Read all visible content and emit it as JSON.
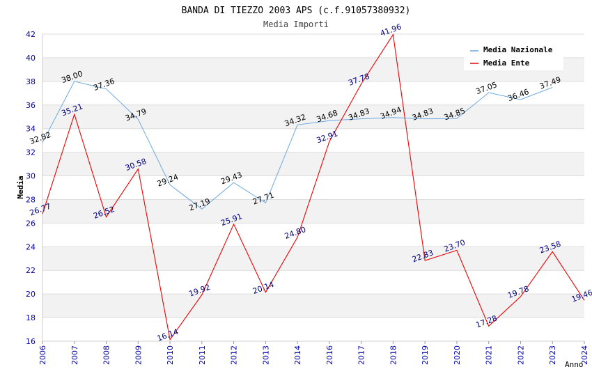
{
  "chart_data": {
    "type": "line",
    "title": "BANDA DI TIEZZO 2003 APS (c.f.91057380932)",
    "subtitle": "Media Importi",
    "xlabel": "Anno",
    "ylabel": "Media",
    "categories": [
      "2006",
      "2007",
      "2008",
      "2009",
      "2010",
      "2011",
      "2012",
      "2013",
      "2014",
      "2016",
      "2017",
      "2018",
      "2019",
      "2020",
      "2021",
      "2022",
      "2023",
      "2024"
    ],
    "ylim": [
      16,
      42
    ],
    "yticks": [
      16,
      18,
      20,
      22,
      24,
      26,
      28,
      30,
      32,
      34,
      36,
      38,
      40,
      42
    ],
    "legend_position": "top-right",
    "series": [
      {
        "name": "Media Nazionale",
        "color": "#6aa8e0",
        "label_color": "#000000",
        "values": [
          32.82,
          38.0,
          37.36,
          34.79,
          29.24,
          27.19,
          29.43,
          27.71,
          34.32,
          34.68,
          34.83,
          34.94,
          34.83,
          34.85,
          37.05,
          36.46,
          37.49,
          null
        ],
        "labels": [
          "32.82",
          "38.00",
          "37.36",
          "34.79",
          "29.24",
          "27.19",
          "29.43",
          "27.71",
          "34.32",
          "34.68",
          "34.83",
          "34.94",
          "34.83",
          "34.85",
          "37.05",
          "36.46",
          "37.49",
          null
        ]
      },
      {
        "name": "Media Ente",
        "color": "#ee0000",
        "label_color": "#000080",
        "values": [
          26.77,
          35.21,
          26.52,
          30.58,
          16.14,
          19.92,
          25.91,
          20.14,
          24.8,
          32.91,
          37.78,
          41.96,
          22.83,
          23.7,
          17.28,
          19.78,
          23.58,
          19.46
        ],
        "labels": [
          "26.77",
          "35.21",
          "26.52",
          "30.58",
          "16.14",
          "19.92",
          "25.91",
          "20.14",
          "24.80",
          "32.91",
          "37.78",
          "41.96",
          "22.83",
          "23.70",
          "17.28",
          "19.78",
          "23.58",
          "19.46"
        ]
      }
    ]
  }
}
